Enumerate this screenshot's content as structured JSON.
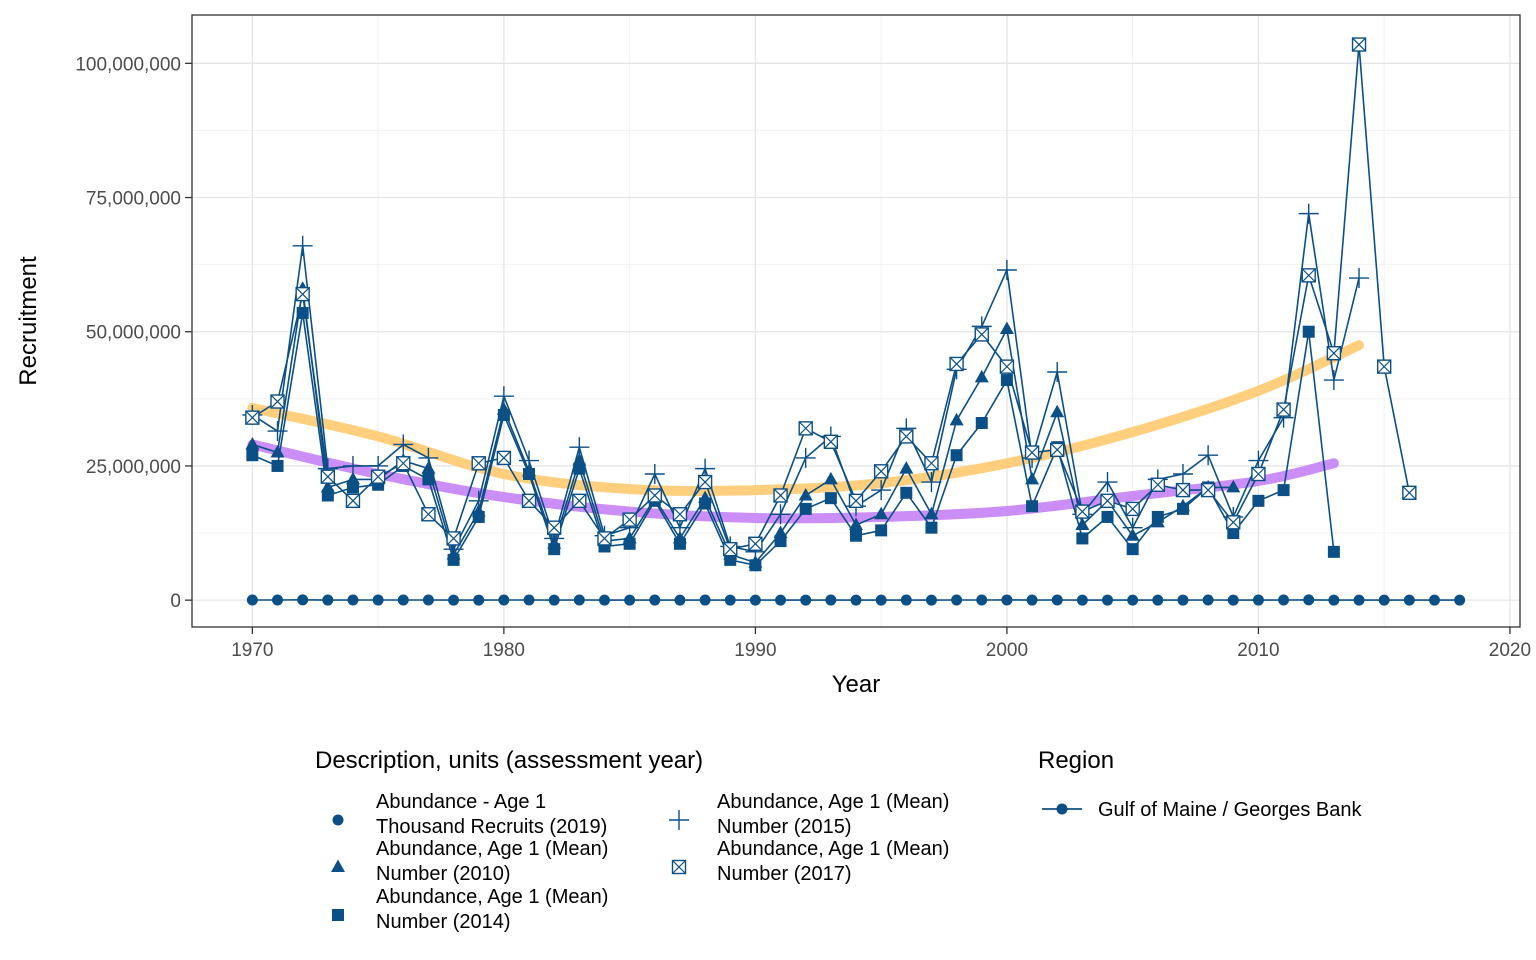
{
  "chart_data": {
    "type": "line",
    "xlabel": "Year",
    "ylabel": "Recruitment",
    "xlim": [
      1967.6,
      2020.4
    ],
    "ylim": [
      -5000000,
      109000000
    ],
    "xticks": [
      1970,
      1980,
      1990,
      2000,
      2010,
      2020
    ],
    "xtick_labels": [
      "1970",
      "1980",
      "1990",
      "2000",
      "2010",
      "2020"
    ],
    "yticks": [
      0,
      25000000,
      50000000,
      75000000,
      100000000
    ],
    "ytick_labels": [
      "0",
      "25,000,000",
      "50,000,000",
      "75,000,000",
      "100,000,000"
    ],
    "grid": true,
    "line_color": "#0b4f87",
    "series": [
      {
        "name": "Abundance - Age 1 Thousand Recruits (2019)",
        "shape": "circle",
        "x": [
          1970,
          1971,
          1972,
          1973,
          1974,
          1975,
          1976,
          1977,
          1978,
          1979,
          1980,
          1981,
          1982,
          1983,
          1984,
          1985,
          1986,
          1987,
          1988,
          1989,
          1990,
          1991,
          1992,
          1993,
          1994,
          1995,
          1996,
          1997,
          1998,
          1999,
          2000,
          2001,
          2002,
          2003,
          2004,
          2005,
          2006,
          2007,
          2008,
          2009,
          2010,
          2011,
          2012,
          2013,
          2014,
          2015,
          2016,
          2017,
          2018
        ],
        "y": [
          30000,
          28000,
          58000,
          20000,
          22000,
          22000,
          25000,
          23000,
          8000,
          16000,
          36000,
          23000,
          10000,
          25000,
          11000,
          11000,
          18000,
          11000,
          18000,
          8000,
          7000,
          11000,
          17000,
          19000,
          12000,
          13000,
          20000,
          14000,
          27000,
          33000,
          41000,
          18000,
          29000,
          12000,
          16000,
          10000,
          14000,
          17000,
          21000,
          13000,
          18000,
          21000,
          50000,
          9000,
          15000,
          12000,
          10000,
          9000,
          8000
        ]
      },
      {
        "name": "Abundance, Age 1 (Mean) Number (2010)",
        "shape": "triangle",
        "x": [
          1970,
          1971,
          1972,
          1973,
          1974,
          1975,
          1976,
          1977,
          1978,
          1979,
          1980,
          1981,
          1982,
          1983,
          1984,
          1985,
          1986,
          1987,
          1988,
          1989,
          1990,
          1991,
          1992,
          1993,
          1994,
          1995,
          1996,
          1997,
          1998,
          1999,
          2000,
          2001,
          2002,
          2003,
          2004,
          2005,
          2006,
          2007,
          2008,
          2009
        ],
        "y": [
          29000000,
          27500000,
          58000000,
          21000000,
          22500000,
          22500000,
          26000000,
          24500000,
          8500000,
          16500000,
          35500000,
          24000000,
          10500000,
          26000000,
          11000000,
          11500000,
          19000000,
          11500000,
          19000000,
          8500000,
          7000000,
          12500000,
          19500000,
          22500000,
          14000000,
          16000000,
          24500000,
          16000000,
          33500000,
          41500000,
          50500000,
          22500000,
          35000000,
          14000000,
          18500000,
          12000000,
          14500000,
          17500000,
          21000000,
          21000000
        ]
      },
      {
        "name": "Abundance, Age 1 (Mean) Number (2014)",
        "shape": "square",
        "x": [
          1970,
          1971,
          1972,
          1973,
          1974,
          1975,
          1976,
          1977,
          1978,
          1979,
          1980,
          1981,
          1982,
          1983,
          1984,
          1985,
          1986,
          1987,
          1988,
          1989,
          1990,
          1991,
          1992,
          1993,
          1994,
          1995,
          1996,
          1997,
          1998,
          1999,
          2000,
          2001,
          2002,
          2003,
          2004,
          2005,
          2006,
          2007,
          2008,
          2009,
          2010,
          2011,
          2012,
          2013
        ],
        "y": [
          27000000,
          25000000,
          53500000,
          19500000,
          21000000,
          21500000,
          25000000,
          22500000,
          7500000,
          15500000,
          34500000,
          23500000,
          9500000,
          24500000,
          10000000,
          10500000,
          18500000,
          10500000,
          18000000,
          7500000,
          6500000,
          11000000,
          17000000,
          19000000,
          12000000,
          13000000,
          20000000,
          13500000,
          27000000,
          33000000,
          41000000,
          17500000,
          28500000,
          11500000,
          15500000,
          9500000,
          15500000,
          17000000,
          21000000,
          12500000,
          18500000,
          20500000,
          50000000,
          9000000
        ]
      },
      {
        "name": "Abundance, Age 1 (Mean) Number (2015)",
        "shape": "plus",
        "x": [
          1970,
          1971,
          1972,
          1973,
          1974,
          1975,
          1976,
          1977,
          1978,
          1979,
          1980,
          1981,
          1982,
          1983,
          1984,
          1985,
          1986,
          1987,
          1988,
          1989,
          1990,
          1991,
          1992,
          1993,
          1994,
          1995,
          1996,
          1997,
          1998,
          1999,
          2000,
          2001,
          2002,
          2003,
          2004,
          2005,
          2006,
          2007,
          2008,
          2009,
          2010,
          2011,
          2012,
          2013,
          2014
        ],
        "y": [
          34500000,
          31500000,
          66000000,
          24500000,
          25000000,
          25000000,
          29000000,
          26500000,
          9500000,
          18500000,
          38000000,
          26000000,
          11500000,
          28500000,
          12000000,
          13500000,
          23500000,
          13500000,
          24500000,
          10000000,
          9000000,
          16000000,
          26500000,
          30500000,
          17500000,
          20500000,
          32000000,
          22000000,
          43000000,
          51000000,
          61500000,
          26500000,
          42500000,
          16000000,
          22000000,
          13500000,
          22500000,
          23500000,
          27000000,
          15500000,
          26000000,
          34000000,
          72000000,
          41000000,
          60000000
        ]
      },
      {
        "name": "Abundance, Age 1 (Mean) Number (2017)",
        "shape": "crossbox",
        "x": [
          1970,
          1971,
          1972,
          1973,
          1974,
          1975,
          1976,
          1977,
          1978,
          1979,
          1980,
          1981,
          1982,
          1983,
          1984,
          1985,
          1986,
          1987,
          1988,
          1989,
          1990,
          1991,
          1992,
          1993,
          1994,
          1995,
          1996,
          1997,
          1998,
          1999,
          2000,
          2001,
          2002,
          2003,
          2004,
          2005,
          2006,
          2007,
          2008,
          2009,
          2010,
          2011,
          2012,
          2013,
          2014,
          2015,
          2016
        ],
        "y": [
          34000000,
          37000000,
          57000000,
          23000000,
          18500000,
          23000000,
          25500000,
          16000000,
          11500000,
          25500000,
          26500000,
          18500000,
          13500000,
          18500000,
          11500000,
          15000000,
          19500000,
          16000000,
          22000000,
          9500000,
          10500000,
          19500000,
          32000000,
          29500000,
          18500000,
          24000000,
          30500000,
          25500000,
          44000000,
          49500000,
          43500000,
          27500000,
          28000000,
          16500000,
          18500000,
          17000000,
          21500000,
          20500000,
          20500000,
          14500000,
          23500000,
          35500000,
          60500000,
          46000000,
          103500000,
          43500000,
          20000000
        ]
      }
    ],
    "trends": [
      {
        "color": "#ffcc77",
        "x": [
          1970,
          1975,
          1980,
          1985,
          1990,
          1995,
          2000,
          2005,
          2010,
          2014
        ],
        "y": [
          35800000,
          30500000,
          23500000,
          20700000,
          20500000,
          21800000,
          25500000,
          31300000,
          39000000,
          47500000
        ]
      },
      {
        "color": "#c788f5",
        "x": [
          1970,
          1975,
          1980,
          1985,
          1990,
          1995,
          2000,
          2005,
          2010,
          2013
        ],
        "y": [
          29000000,
          23500000,
          19200000,
          16500000,
          15300000,
          15500000,
          16600000,
          19400000,
          22200000,
          25500000
        ]
      }
    ],
    "legend": {
      "position": "bottom",
      "description_title": "Description, units (assessment year)",
      "description_items": [
        {
          "shape": "circle",
          "line1": "Abundance - Age 1",
          "line2": "Thousand Recruits (2019)"
        },
        {
          "shape": "triangle",
          "line1": "Abundance, Age 1 (Mean)",
          "line2": "Number (2010)"
        },
        {
          "shape": "square",
          "line1": "Abundance, Age 1 (Mean)",
          "line2": "Number (2014)"
        },
        {
          "shape": "plus",
          "line1": "Abundance, Age 1 (Mean)",
          "line2": "Number (2015)"
        },
        {
          "shape": "crossbox",
          "line1": "Abundance, Age 1 (Mean)",
          "line2": "Number (2017)"
        }
      ],
      "region_title": "Region",
      "region_items": [
        {
          "label": "Gulf of Maine / Georges Bank",
          "color": "#0b4f87"
        }
      ]
    }
  }
}
